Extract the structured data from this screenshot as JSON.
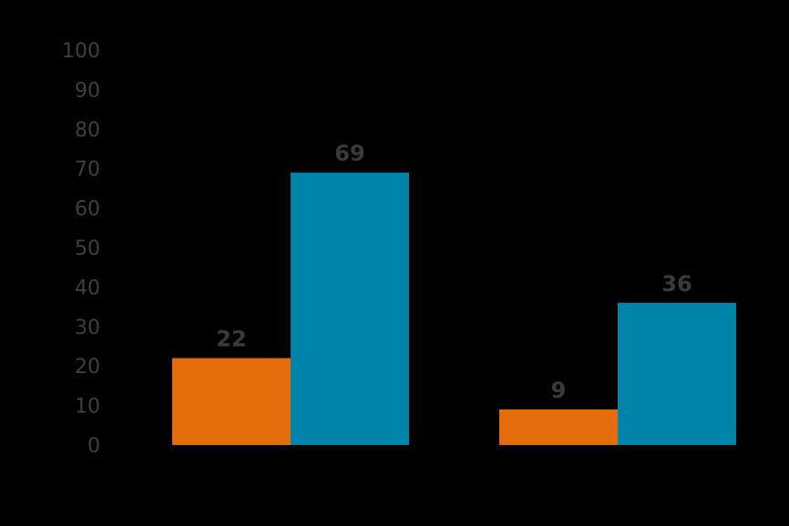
{
  "chart_data": {
    "type": "bar",
    "categories": [
      "",
      ""
    ],
    "series": [
      {
        "values": [
          22,
          9
        ],
        "color": "#e46c0a"
      },
      {
        "values": [
          69,
          36
        ],
        "color": "#0083a9"
      }
    ],
    "ylim": [
      0,
      100
    ],
    "yticks": [
      "0",
      "10",
      "20",
      "30",
      "40",
      "50",
      "60",
      "70",
      "80",
      "90",
      "100"
    ],
    "grid": false,
    "legend": "none"
  }
}
